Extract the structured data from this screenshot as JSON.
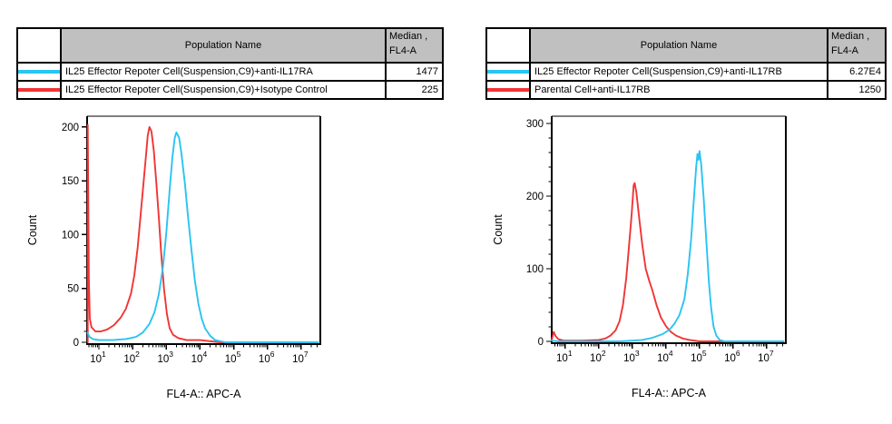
{
  "colors": {
    "cyan": "#29c4f2",
    "red": "#f23434",
    "table_header_bg": "#c0c0c0",
    "axis": "#000000"
  },
  "panels": [
    {
      "table": {
        "population_header": "Population Name",
        "median_header_line1": "Median ,",
        "median_header_line2": "FL4-A",
        "rows": [
          {
            "color": "#29c4f2",
            "population": "IL25 Effector Repoter Cell(Suspension,C9)+anti-IL17RA",
            "median": "1477"
          },
          {
            "color": "#f23434",
            "population": "IL25 Effector Repoter Cell(Suspension,C9)+Isotype Control",
            "median": "225"
          }
        ]
      }
    },
    {
      "table": {
        "population_header": "Population Name",
        "median_header_line1": "Median ,",
        "median_header_line2": "FL4-A",
        "rows": [
          {
            "color": "#29c4f2",
            "population": "IL25 Effector Repoter Cell(Suspension,C9)+anti-IL17RB",
            "median": "6.27E4"
          },
          {
            "color": "#f23434",
            "population": "Parental Cell+anti-IL17RB",
            "median": "1250"
          }
        ]
      }
    }
  ],
  "chart_data": [
    {
      "type": "line",
      "title": "",
      "xlabel": "FL4-A:: APC-A",
      "ylabel": "Count",
      "x_scale": "log10",
      "x_ticks_exponents": [
        1,
        2,
        3,
        4,
        5,
        6,
        7
      ],
      "xlim_log": [
        0.65,
        7.57
      ],
      "ylim": [
        0,
        210
      ],
      "y_major_ticks": [
        0,
        50,
        100,
        150,
        200
      ],
      "y_minor_step": 10,
      "grid": false,
      "legend_position": "table-above",
      "series": [
        {
          "name": "IL25 Effector Repoter Cell(Suspension,C9)+Isotype Control",
          "color_key": "red",
          "color": "#f23434",
          "median_fl4a": "225",
          "points_logx_count": [
            [
              0.67,
              0
            ],
            [
              0.67,
              202
            ],
            [
              0.7,
              60
            ],
            [
              0.73,
              22
            ],
            [
              0.78,
              14
            ],
            [
              0.9,
              10
            ],
            [
              1.05,
              10
            ],
            [
              1.25,
              12
            ],
            [
              1.45,
              16
            ],
            [
              1.65,
              23
            ],
            [
              1.8,
              31
            ],
            [
              1.95,
              45
            ],
            [
              2.05,
              62
            ],
            [
              2.15,
              88
            ],
            [
              2.22,
              112
            ],
            [
              2.3,
              140
            ],
            [
              2.38,
              168
            ],
            [
              2.45,
              192
            ],
            [
              2.5,
              200
            ],
            [
              2.56,
              196
            ],
            [
              2.63,
              178
            ],
            [
              2.7,
              150
            ],
            [
              2.78,
              115
            ],
            [
              2.85,
              82
            ],
            [
              2.93,
              50
            ],
            [
              3.02,
              26
            ],
            [
              3.1,
              13
            ],
            [
              3.2,
              7
            ],
            [
              3.35,
              4
            ],
            [
              3.6,
              2
            ],
            [
              4.0,
              2
            ],
            [
              4.3,
              1
            ],
            [
              4.6,
              0
            ],
            [
              7.5,
              0
            ]
          ]
        },
        {
          "name": "IL25 Effector Repoter Cell(Suspension,C9)+anti-IL17RA",
          "color_key": "cyan",
          "color": "#29c4f2",
          "median_fl4a": "1477",
          "points_logx_count": [
            [
              0.66,
              9
            ],
            [
              0.72,
              5
            ],
            [
              0.82,
              3
            ],
            [
              1.0,
              2
            ],
            [
              1.4,
              2
            ],
            [
              1.8,
              3
            ],
            [
              2.1,
              5
            ],
            [
              2.3,
              9
            ],
            [
              2.5,
              17
            ],
            [
              2.65,
              28
            ],
            [
              2.78,
              45
            ],
            [
              2.9,
              70
            ],
            [
              3.0,
              102
            ],
            [
              3.1,
              142
            ],
            [
              3.18,
              172
            ],
            [
              3.25,
              190
            ],
            [
              3.3,
              195
            ],
            [
              3.38,
              190
            ],
            [
              3.45,
              175
            ],
            [
              3.55,
              148
            ],
            [
              3.65,
              115
            ],
            [
              3.75,
              85
            ],
            [
              3.85,
              57
            ],
            [
              3.95,
              36
            ],
            [
              4.05,
              22
            ],
            [
              4.15,
              13
            ],
            [
              4.3,
              6
            ],
            [
              4.45,
              2
            ],
            [
              4.6,
              1
            ],
            [
              4.75,
              0
            ],
            [
              7.5,
              0
            ]
          ]
        }
      ]
    },
    {
      "type": "line",
      "title": "",
      "xlabel": "FL4-A:: APC-A",
      "ylabel": "Count",
      "x_scale": "log10",
      "x_ticks_exponents": [
        1,
        2,
        3,
        4,
        5,
        6,
        7
      ],
      "xlim_log": [
        0.6,
        7.57
      ],
      "ylim": [
        0,
        310
      ],
      "y_major_ticks": [
        0,
        100,
        200,
        300
      ],
      "y_minor_step": 20,
      "grid": false,
      "legend_position": "table-above",
      "series": [
        {
          "name": "Parental Cell+anti-IL17RB",
          "color_key": "red",
          "color": "#f23434",
          "median_fl4a": "1250",
          "points_logx_count": [
            [
              0.6,
              2
            ],
            [
              0.66,
              13
            ],
            [
              0.72,
              7
            ],
            [
              0.8,
              3
            ],
            [
              0.95,
              1
            ],
            [
              1.5,
              1
            ],
            [
              2.0,
              2
            ],
            [
              2.2,
              4
            ],
            [
              2.35,
              8
            ],
            [
              2.5,
              15
            ],
            [
              2.62,
              28
            ],
            [
              2.72,
              50
            ],
            [
              2.82,
              88
            ],
            [
              2.9,
              130
            ],
            [
              2.98,
              175
            ],
            [
              3.04,
              215
            ],
            [
              3.07,
              218
            ],
            [
              3.12,
              205
            ],
            [
              3.2,
              172
            ],
            [
              3.3,
              132
            ],
            [
              3.4,
              100
            ],
            [
              3.5,
              84
            ],
            [
              3.6,
              70
            ],
            [
              3.72,
              50
            ],
            [
              3.85,
              33
            ],
            [
              4.0,
              21
            ],
            [
              4.15,
              13
            ],
            [
              4.3,
              8
            ],
            [
              4.5,
              4
            ],
            [
              4.7,
              2
            ],
            [
              5.0,
              0
            ],
            [
              7.5,
              0
            ]
          ]
        },
        {
          "name": "IL25 Effector Repoter Cell(Suspension,C9)+anti-IL17RB",
          "color_key": "cyan",
          "color": "#29c4f2",
          "median_fl4a": "6.27E4",
          "points_logx_count": [
            [
              0.6,
              1
            ],
            [
              0.8,
              0
            ],
            [
              2.6,
              0
            ],
            [
              3.0,
              1
            ],
            [
              3.3,
              2
            ],
            [
              3.6,
              5
            ],
            [
              3.9,
              10
            ],
            [
              4.1,
              16
            ],
            [
              4.25,
              24
            ],
            [
              4.4,
              36
            ],
            [
              4.55,
              58
            ],
            [
              4.65,
              92
            ],
            [
              4.75,
              140
            ],
            [
              4.83,
              195
            ],
            [
              4.9,
              240
            ],
            [
              4.94,
              258
            ],
            [
              4.97,
              250
            ],
            [
              5.0,
              262
            ],
            [
              5.05,
              244
            ],
            [
              5.12,
              200
            ],
            [
              5.2,
              140
            ],
            [
              5.28,
              82
            ],
            [
              5.35,
              45
            ],
            [
              5.42,
              20
            ],
            [
              5.5,
              8
            ],
            [
              5.6,
              2
            ],
            [
              5.75,
              0
            ],
            [
              7.5,
              0
            ]
          ]
        }
      ]
    }
  ]
}
